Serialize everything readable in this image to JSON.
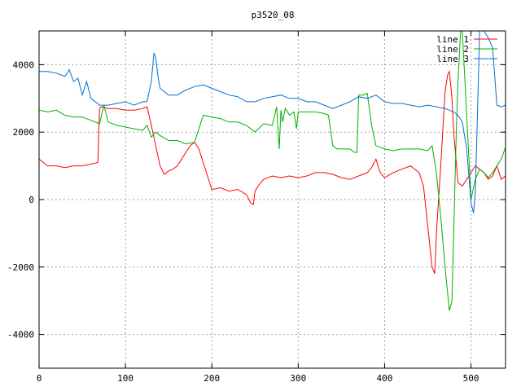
{
  "chart_data": {
    "type": "line",
    "title": "p3520_08",
    "xlabel": "",
    "ylabel": "",
    "xlim": [
      0,
      540
    ],
    "ylim": [
      -5000,
      5000
    ],
    "xticks": [
      0,
      100,
      200,
      300,
      400,
      500
    ],
    "yticks": [
      -4000,
      -2000,
      0,
      2000,
      4000
    ],
    "grid": true,
    "legend_position": "top-right",
    "series": [
      {
        "name": "line 1",
        "color": "#ff0000",
        "x": [
          0,
          5,
          10,
          20,
          30,
          40,
          50,
          60,
          68,
          70,
          72,
          80,
          90,
          100,
          110,
          120,
          125,
          130,
          135,
          140,
          145,
          150,
          155,
          160,
          165,
          170,
          175,
          180,
          185,
          190,
          195,
          200,
          210,
          220,
          230,
          240,
          245,
          248,
          250,
          255,
          260,
          270,
          280,
          290,
          300,
          310,
          320,
          330,
          340,
          350,
          360,
          370,
          380,
          385,
          390,
          395,
          400,
          410,
          420,
          430,
          440,
          445,
          450,
          455,
          458,
          460,
          465,
          470,
          473,
          475,
          478,
          480,
          485,
          490,
          495,
          500,
          505,
          510,
          515,
          520,
          525,
          530,
          535,
          540
        ],
        "y": [
          1200,
          1100,
          1000,
          1000,
          950,
          1000,
          1000,
          1050,
          1100,
          2700,
          2750,
          2700,
          2700,
          2650,
          2650,
          2700,
          2750,
          2200,
          1600,
          1000,
          750,
          850,
          900,
          1000,
          1200,
          1400,
          1600,
          1700,
          1500,
          1100,
          700,
          300,
          350,
          250,
          300,
          150,
          -100,
          -150,
          250,
          450,
          600,
          700,
          650,
          700,
          650,
          700,
          800,
          800,
          750,
          650,
          600,
          700,
          800,
          950,
          1200,
          800,
          650,
          800,
          900,
          1000,
          800,
          400,
          -800,
          -2000,
          -2200,
          -1000,
          1000,
          3200,
          3700,
          3800,
          3000,
          2000,
          500,
          400,
          600,
          800,
          1000,
          900,
          800,
          600,
          700,
          1000,
          600,
          700
        ]
      },
      {
        "name": "line 2",
        "color": "#00b000",
        "x": [
          0,
          10,
          20,
          30,
          40,
          50,
          60,
          70,
          75,
          80,
          90,
          100,
          110,
          120,
          125,
          130,
          135,
          140,
          150,
          160,
          170,
          180,
          190,
          200,
          210,
          220,
          230,
          240,
          250,
          260,
          270,
          275,
          278,
          280,
          282,
          285,
          290,
          295,
          298,
          300,
          310,
          320,
          330,
          335,
          340,
          345,
          350,
          360,
          365,
          368,
          370,
          375,
          380,
          385,
          390,
          400,
          410,
          420,
          430,
          440,
          450,
          455,
          460,
          465,
          470,
          475,
          478,
          480,
          483,
          485,
          488,
          490,
          495,
          500,
          505,
          510,
          515,
          520,
          525,
          530,
          535,
          540
        ],
        "y": [
          2650,
          2600,
          2650,
          2500,
          2450,
          2450,
          2350,
          2250,
          2800,
          2300,
          2200,
          2150,
          2100,
          2050,
          2200,
          1850,
          2000,
          1900,
          1750,
          1750,
          1650,
          1700,
          2500,
          2450,
          2400,
          2300,
          2300,
          2200,
          2000,
          2250,
          2200,
          2750,
          1500,
          2650,
          2300,
          2700,
          2500,
          2600,
          2100,
          2600,
          2600,
          2600,
          2550,
          2500,
          1600,
          1500,
          1500,
          1500,
          1400,
          1400,
          3100,
          3100,
          3150,
          2200,
          1600,
          1500,
          1450,
          1500,
          1500,
          1500,
          1450,
          1600,
          800,
          -500,
          -2000,
          -3300,
          -3000,
          -1000,
          2000,
          3500,
          5000,
          5000,
          2500,
          0,
          600,
          900,
          800,
          650,
          800,
          1000,
          1200,
          1550
        ]
      },
      {
        "name": "line 3",
        "color": "#0070d0",
        "x": [
          0,
          10,
          20,
          30,
          35,
          40,
          45,
          50,
          55,
          60,
          70,
          80,
          90,
          100,
          110,
          120,
          125,
          130,
          133,
          135,
          138,
          140,
          150,
          160,
          170,
          180,
          190,
          200,
          210,
          220,
          230,
          240,
          250,
          260,
          270,
          280,
          290,
          300,
          310,
          320,
          330,
          340,
          350,
          360,
          370,
          380,
          390,
          400,
          410,
          420,
          430,
          440,
          450,
          460,
          470,
          480,
          485,
          490,
          495,
          500,
          503,
          505,
          508,
          510,
          515,
          520,
          525,
          530,
          535,
          540
        ],
        "y": [
          3800,
          3800,
          3750,
          3650,
          3850,
          3500,
          3600,
          3100,
          3500,
          3000,
          2800,
          2800,
          2850,
          2900,
          2800,
          2900,
          2900,
          3500,
          4350,
          4200,
          3600,
          3300,
          3100,
          3100,
          3250,
          3350,
          3400,
          3300,
          3200,
          3100,
          3050,
          2900,
          2900,
          3000,
          3050,
          3100,
          3000,
          3000,
          2900,
          2900,
          2800,
          2700,
          2800,
          2900,
          3050,
          3000,
          3100,
          2900,
          2850,
          2850,
          2800,
          2750,
          2800,
          2750,
          2700,
          2600,
          2500,
          2300,
          1500,
          -100,
          -400,
          200,
          3000,
          5000,
          5000,
          4800,
          4500,
          2800,
          2750,
          2800
        ]
      }
    ]
  }
}
